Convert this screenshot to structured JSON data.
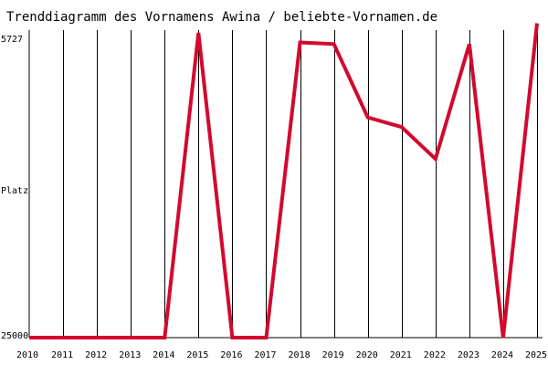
{
  "chart_data": {
    "type": "line",
    "title": "Trenddiagramm des Vornamens Awina / beliebte-Vornamen.de",
    "ylabel": "Platz",
    "y_top_label": "5727",
    "y_bottom_label": "25000",
    "ylim": [
      25000,
      5727
    ],
    "y_inverted": true,
    "x": [
      "2010",
      "2011",
      "2012",
      "2013",
      "2014",
      "2015",
      "2016",
      "2017",
      "2018",
      "2019",
      "2020",
      "2021",
      "2022",
      "2023",
      "2024",
      "2025"
    ],
    "series": [
      {
        "values": [
          25000,
          25000,
          25000,
          25000,
          25000,
          5900,
          25000,
          25000,
          6500,
          6600,
          11200,
          11800,
          13800,
          6600,
          25000,
          5300
        ]
      }
    ],
    "colors": {
      "line": "#d20a2e",
      "grid": "#000000",
      "axis_text": "#000000",
      "background": "#ffffff"
    },
    "grid": "vertical"
  }
}
